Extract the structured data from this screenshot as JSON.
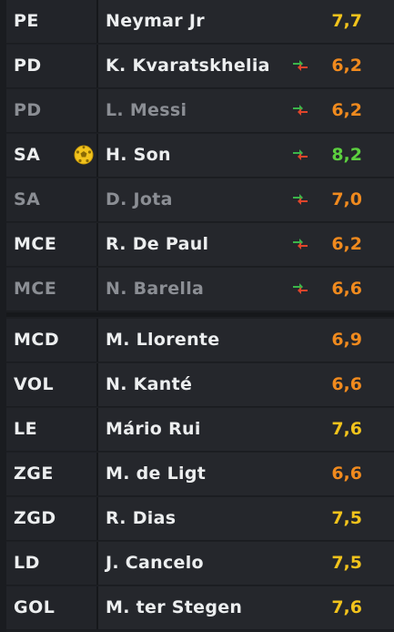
{
  "colors": {
    "rating_yellow": "#f2c31c",
    "rating_orange": "#f08a1e",
    "rating_green": "#5ccf3f",
    "sub_in_green": "#3bb54a",
    "sub_out_red": "#e0452b"
  },
  "players": [
    {
      "pos": "PE",
      "name": "Neymar Jr",
      "rating": "7,7",
      "rating_color": "#f2c31c",
      "dim": false,
      "sub": false,
      "goal": false
    },
    {
      "pos": "PD",
      "name": "K. Kvaratskhelia",
      "rating": "6,2",
      "rating_color": "#f08a1e",
      "dim": false,
      "sub": true,
      "goal": false
    },
    {
      "pos": "PD",
      "name": "L. Messi",
      "rating": "6,2",
      "rating_color": "#f08a1e",
      "dim": true,
      "sub": true,
      "goal": false
    },
    {
      "pos": "SA",
      "name": "H. Son",
      "rating": "8,2",
      "rating_color": "#5ccf3f",
      "dim": false,
      "sub": true,
      "goal": true
    },
    {
      "pos": "SA",
      "name": "D. Jota",
      "rating": "7,0",
      "rating_color": "#f08a1e",
      "dim": true,
      "sub": true,
      "goal": false
    },
    {
      "pos": "MCE",
      "name": "R. De Paul",
      "rating": "6,2",
      "rating_color": "#f08a1e",
      "dim": false,
      "sub": true,
      "goal": false
    },
    {
      "pos": "MCE",
      "name": "N. Barella",
      "rating": "6,6",
      "rating_color": "#f08a1e",
      "dim": true,
      "sub": true,
      "goal": false
    },
    {
      "pos": "MCD",
      "name": "M. Llorente",
      "rating": "6,9",
      "rating_color": "#f08a1e",
      "dim": false,
      "sub": false,
      "goal": false
    },
    {
      "pos": "VOL",
      "name": "N. Kanté",
      "rating": "6,6",
      "rating_color": "#f08a1e",
      "dim": false,
      "sub": false,
      "goal": false
    },
    {
      "pos": "LE",
      "name": "Mário Rui",
      "rating": "7,6",
      "rating_color": "#f2c31c",
      "dim": false,
      "sub": false,
      "goal": false
    },
    {
      "pos": "ZGE",
      "name": "M. de Ligt",
      "rating": "6,6",
      "rating_color": "#f08a1e",
      "dim": false,
      "sub": false,
      "goal": false
    },
    {
      "pos": "ZGD",
      "name": "R. Dias",
      "rating": "7,5",
      "rating_color": "#f2c31c",
      "dim": false,
      "sub": false,
      "goal": false
    },
    {
      "pos": "LD",
      "name": "J. Cancelo",
      "rating": "7,5",
      "rating_color": "#f2c31c",
      "dim": false,
      "sub": false,
      "goal": false
    },
    {
      "pos": "GOL",
      "name": "M. ter Stegen",
      "rating": "7,6",
      "rating_color": "#f2c31c",
      "dim": false,
      "sub": false,
      "goal": false
    }
  ]
}
